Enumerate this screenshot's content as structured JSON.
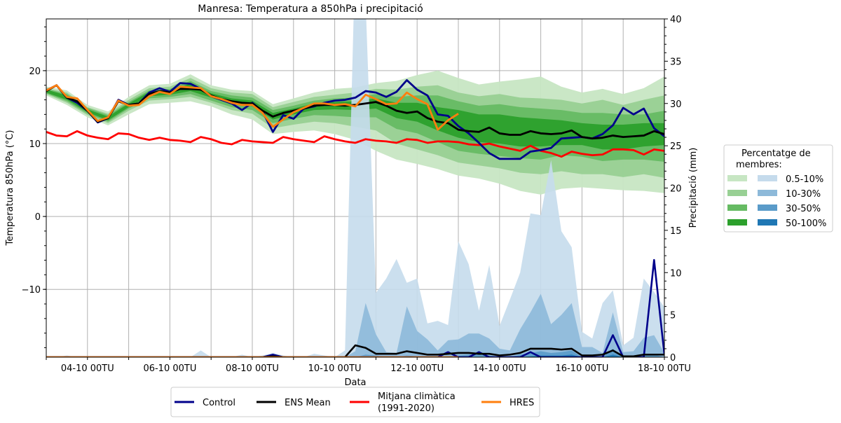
{
  "chart_data": {
    "type": "area",
    "title": "Manresa: Temperatura a 850hPa i precipitació",
    "xlabel": "Data",
    "ylabel": "Temperatura 850hPa (°C)",
    "ylabel_right": "Precipitació (mm)",
    "ylim": [
      -19.3,
      27.1
    ],
    "ylim_right": [
      0,
      40
    ],
    "xlim": [
      "03-10 00TU",
      "18-10 00TU"
    ],
    "grid": true,
    "x_ticks": [
      "04-10 00TU",
      "06-10 00TU",
      "08-10 00TU",
      "10-10 00TU",
      "12-10 00TU",
      "14-10 00TU",
      "16-10 00TU",
      "18-10 00TU"
    ],
    "y_ticks": [
      "−10",
      "0",
      "10",
      "20"
    ],
    "y_ticks_right": [
      "0",
      "5",
      "10",
      "15",
      "20",
      "25",
      "30",
      "35",
      "40"
    ],
    "x": [
      "03-10 00TU",
      "03-10 06TU",
      "03-10 12TU",
      "03-10 18TU",
      "04-10 00TU",
      "04-10 06TU",
      "04-10 12TU",
      "04-10 18TU",
      "05-10 00TU",
      "05-10 06TU",
      "05-10 12TU",
      "05-10 18TU",
      "06-10 00TU",
      "06-10 06TU",
      "06-10 12TU",
      "06-10 18TU",
      "07-10 00TU",
      "07-10 06TU",
      "07-10 12TU",
      "07-10 18TU",
      "08-10 00TU",
      "08-10 06TU",
      "08-10 12TU",
      "08-10 18TU",
      "09-10 00TU",
      "09-10 06TU",
      "09-10 12TU",
      "09-10 18TU",
      "10-10 00TU",
      "10-10 06TU",
      "10-10 12TU",
      "10-10 18TU",
      "11-10 00TU",
      "11-10 06TU",
      "11-10 12TU",
      "11-10 18TU",
      "12-10 00TU",
      "12-10 06TU",
      "12-10 12TU",
      "12-10 18TU",
      "13-10 00TU",
      "13-10 06TU",
      "13-10 12TU",
      "13-10 18TU",
      "14-10 00TU",
      "14-10 06TU",
      "14-10 12TU",
      "14-10 18TU",
      "15-10 00TU",
      "15-10 06TU",
      "15-10 12TU",
      "15-10 18TU",
      "16-10 00TU",
      "16-10 06TU",
      "16-10 12TU",
      "16-10 18TU",
      "17-10 00TU",
      "17-10 06TU",
      "17-10 12TU",
      "17-10 18TU",
      "18-10 00TU"
    ],
    "band_x": [
      "03-10 00TU",
      "03-10 12TU",
      "04-10 00TU",
      "04-10 12TU",
      "05-10 00TU",
      "05-10 12TU",
      "06-10 00TU",
      "06-10 12TU",
      "07-10 00TU",
      "07-10 12TU",
      "08-10 00TU",
      "08-10 12TU",
      "09-10 00TU",
      "09-10 12TU",
      "10-10 00TU",
      "10-10 12TU",
      "11-10 00TU",
      "11-10 12TU",
      "12-10 00TU",
      "12-10 12TU",
      "13-10 00TU",
      "13-10 12TU",
      "14-10 00TU",
      "14-10 12TU",
      "15-10 00TU",
      "15-10 12TU",
      "16-10 00TU",
      "16-10 12TU",
      "17-10 00TU",
      "17-10 12TU",
      "18-10 00TU"
    ],
    "temperature_bands": [
      {
        "label": "0.5-10%",
        "color": "#c7e6c3",
        "upper": [
          17.8,
          17.3,
          15.3,
          14.4,
          16.4,
          18.0,
          18.2,
          19.5,
          18.0,
          17.4,
          17.2,
          15.4,
          16.2,
          17.0,
          17.5,
          17.7,
          18.3,
          18.6,
          19.4,
          20.0,
          19.0,
          18.1,
          18.5,
          18.8,
          19.2,
          17.8,
          17.0,
          17.5,
          16.8,
          17.6,
          19.2
        ],
        "lower": [
          16.6,
          15.3,
          13.6,
          12.5,
          14.0,
          15.4,
          15.6,
          15.8,
          15.1,
          14.0,
          13.3,
          11.3,
          11.6,
          11.8,
          11.3,
          10.5,
          9.0,
          7.8,
          7.2,
          6.5,
          5.6,
          5.2,
          4.5,
          3.5,
          3.0,
          3.8,
          4.0,
          3.8,
          3.6,
          3.5,
          3.2
        ]
      },
      {
        "label": "10-30%",
        "color": "#98d094",
        "upper": [
          17.6,
          17.0,
          15.0,
          14.1,
          16.0,
          17.6,
          17.8,
          19.0,
          17.6,
          17.0,
          16.8,
          15.0,
          15.7,
          16.4,
          16.7,
          17.0,
          17.5,
          17.4,
          17.8,
          18.0,
          17.0,
          16.5,
          16.8,
          16.3,
          16.2,
          16.0,
          15.5,
          16.0,
          15.3,
          16.0,
          16.6
        ],
        "lower": [
          16.8,
          15.6,
          13.9,
          12.8,
          14.5,
          15.9,
          16.1,
          16.4,
          15.6,
          14.6,
          14.1,
          12.1,
          12.6,
          13.0,
          12.8,
          12.3,
          11.8,
          10.0,
          9.2,
          8.4,
          7.4,
          7.0,
          6.6,
          6.0,
          5.8,
          6.2,
          5.8,
          5.8,
          5.4,
          5.8,
          5.3
        ]
      },
      {
        "label": "30-50%",
        "color": "#66bb63",
        "upper": [
          17.5,
          16.8,
          14.9,
          13.9,
          15.7,
          17.3,
          17.5,
          18.6,
          17.2,
          16.6,
          16.3,
          14.6,
          15.2,
          15.9,
          16.2,
          16.3,
          16.8,
          16.4,
          16.6,
          16.6,
          15.8,
          15.2,
          15.4,
          15.0,
          14.8,
          14.6,
          14.2,
          14.2,
          14.0,
          14.0,
          14.5
        ],
        "lower": [
          16.9,
          15.8,
          14.1,
          13.0,
          14.8,
          16.2,
          16.4,
          16.8,
          15.9,
          15.0,
          14.6,
          12.8,
          13.4,
          13.9,
          13.8,
          13.6,
          13.6,
          12.0,
          11.4,
          10.2,
          9.0,
          8.6,
          8.3,
          8.0,
          7.8,
          8.4,
          8.2,
          7.6,
          7.8,
          7.8,
          7.5
        ]
      },
      {
        "label": "50-100%",
        "color": "#2ca02c",
        "upper": [
          17.4,
          16.6,
          14.7,
          13.7,
          15.5,
          17.1,
          17.3,
          18.2,
          16.9,
          16.2,
          15.9,
          14.2,
          14.8,
          15.5,
          15.7,
          15.8,
          16.2,
          15.6,
          15.6,
          15.0,
          14.6,
          14.0,
          14.0,
          13.6,
          13.4,
          13.2,
          12.8,
          12.6,
          12.6,
          12.8,
          12.8
        ],
        "lower": [
          17.0,
          16.0,
          14.3,
          13.2,
          15.0,
          16.5,
          16.7,
          17.2,
          16.3,
          15.4,
          15.1,
          13.3,
          14.0,
          14.6,
          14.7,
          14.6,
          14.8,
          13.5,
          13.0,
          11.8,
          10.8,
          10.2,
          10.0,
          9.6,
          9.6,
          9.8,
          9.8,
          9.2,
          9.2,
          9.6,
          9.8
        ]
      }
    ],
    "precipitation_bands": [
      {
        "label": "0.5-10%",
        "color": "#c5dbec",
        "values": [
          0,
          0,
          0.2,
          0,
          0,
          0,
          0,
          0,
          0,
          0,
          0,
          0,
          0.1,
          0,
          0,
          0.8,
          0,
          0,
          0,
          0.3,
          0,
          0.2,
          0.5,
          0.2,
          0,
          0,
          0.4,
          0.2,
          0,
          0.8,
          48,
          42,
          7.6,
          9.3,
          11.6,
          8.8,
          9.3,
          4.0,
          4.3,
          3.8,
          13.7,
          11.0,
          5.5,
          10.9,
          3.7,
          6.8,
          10.0,
          17.0,
          16.8,
          23.3,
          14.9,
          13.0,
          3.0,
          2.2,
          6.4,
          7.9,
          1.4,
          2.3,
          9.3,
          7.7,
          5.9
        ]
      },
      {
        "label": "10-30%",
        "color": "#8db9d9",
        "values": [
          0,
          0,
          0,
          0,
          0,
          0,
          0,
          0,
          0,
          0,
          0,
          0,
          0,
          0,
          0,
          0,
          0,
          0,
          0,
          0,
          0,
          0,
          0,
          0,
          0,
          0,
          0,
          0,
          0,
          0,
          0.7,
          6.4,
          2.7,
          0.6,
          0.5,
          6.0,
          3.1,
          2.1,
          0.8,
          2.0,
          2.1,
          2.8,
          2.8,
          2.2,
          1.0,
          0.8,
          3.3,
          5.3,
          7.5,
          3.9,
          5.0,
          6.4,
          1.2,
          1.2,
          0.5,
          5.3,
          0.6,
          0.7,
          2.3,
          2.6,
          0.5
        ]
      },
      {
        "label": "30-50%",
        "color": "#5a9bc9",
        "values": [
          0,
          0,
          0,
          0,
          0,
          0,
          0,
          0,
          0,
          0,
          0,
          0,
          0,
          0,
          0,
          0,
          0,
          0,
          0,
          0,
          0,
          0,
          0,
          0,
          0,
          0,
          0,
          0,
          0,
          0,
          0,
          0.3,
          0.2,
          0,
          0,
          0.2,
          0.1,
          0,
          0,
          0.1,
          0.2,
          0.3,
          0.3,
          0.2,
          0,
          0,
          0.3,
          0.5,
          0.7,
          0.5,
          0.6,
          0.8,
          0,
          0,
          0,
          1.0,
          0,
          0,
          0.2,
          0.3,
          0
        ]
      },
      {
        "label": "50-100%",
        "color": "#1f77b4",
        "values": [
          0,
          0,
          0,
          0,
          0,
          0,
          0,
          0,
          0,
          0,
          0,
          0,
          0,
          0,
          0,
          0,
          0,
          0,
          0,
          0,
          0,
          0,
          0,
          0,
          0,
          0,
          0,
          0,
          0,
          0,
          0,
          0,
          0,
          0,
          0,
          0,
          0,
          0,
          0,
          0,
          0,
          0,
          0,
          0,
          0,
          0,
          0,
          0.1,
          0.2,
          0.2,
          0.2,
          0.3,
          0,
          0,
          0,
          0.3,
          0,
          0,
          0,
          0,
          0
        ]
      }
    ],
    "series": [
      {
        "name": "Control",
        "color": "#00008b",
        "temperature": [
          17.3,
          18.0,
          16.3,
          15.6,
          14.5,
          12.9,
          13.5,
          16.0,
          15.3,
          15.5,
          17.0,
          17.6,
          17.1,
          18.3,
          18.2,
          17.5,
          16.5,
          16.0,
          15.5,
          14.6,
          15.6,
          14.4,
          11.6,
          13.9,
          13.4,
          14.8,
          15.1,
          15.6,
          15.9,
          16.0,
          16.3,
          17.2,
          17.0,
          16.4,
          17.1,
          18.7,
          17.4,
          16.6,
          14.0,
          13.8,
          12.4,
          11.4,
          10.1,
          8.7,
          7.9,
          7.9,
          7.9,
          8.9,
          9.1,
          9.4,
          10.7,
          10.8,
          10.9,
          10.7,
          11.3,
          12.5,
          14.9,
          14.0,
          14.8,
          12.1,
          11.0
        ],
        "precipitation": [
          0,
          0,
          0,
          0,
          0,
          0,
          0,
          0,
          0,
          0,
          0,
          0,
          0,
          0,
          0,
          0,
          0,
          0,
          0,
          0,
          0,
          0,
          0.3,
          0,
          0,
          0,
          0,
          0,
          0,
          0,
          0,
          0,
          0,
          0,
          0,
          0,
          0,
          0,
          0,
          0.6,
          0,
          0,
          0.6,
          0,
          0,
          0,
          0,
          0.6,
          0,
          0,
          0,
          0,
          0,
          0,
          0,
          2.6,
          0,
          0,
          0,
          11.5,
          0.3
        ]
      },
      {
        "name": "ENS Mean",
        "color": "#000000",
        "temperature": [
          17.2,
          18.0,
          16.3,
          15.8,
          14.5,
          13.0,
          13.5,
          15.8,
          15.3,
          15.5,
          16.8,
          17.2,
          17.0,
          17.5,
          17.5,
          17.4,
          16.6,
          16.1,
          15.8,
          15.6,
          15.5,
          14.5,
          13.7,
          14.2,
          14.5,
          14.8,
          15.2,
          15.3,
          15.3,
          15.2,
          15.3,
          15.5,
          15.7,
          15.2,
          14.5,
          14.2,
          14.4,
          13.5,
          13.0,
          12.8,
          11.9,
          11.7,
          11.6,
          12.2,
          11.4,
          11.2,
          11.2,
          11.7,
          11.4,
          11.3,
          11.4,
          11.8,
          10.9,
          10.7,
          10.8,
          11.1,
          10.9,
          11.0,
          11.1,
          11.7,
          11.3
        ],
        "precipitation": [
          0,
          0,
          0,
          0,
          0,
          0,
          0,
          0,
          0,
          0,
          0,
          0,
          0,
          0,
          0,
          0,
          0,
          0,
          0,
          0,
          0,
          0,
          0.1,
          0,
          0,
          0,
          0,
          0,
          0,
          0,
          1.4,
          1.1,
          0.4,
          0.4,
          0.4,
          0.7,
          0.5,
          0.3,
          0.3,
          0.4,
          0.5,
          0.5,
          0.4,
          0.4,
          0.2,
          0.3,
          0.5,
          1.0,
          1.0,
          1.0,
          0.9,
          1.0,
          0.2,
          0.2,
          0.3,
          0.8,
          0.1,
          0.1,
          0.3,
          0.3,
          0.3
        ]
      },
      {
        "name": "Mitjana climàtica\n(1991-2020)",
        "color": "#ff0000",
        "temperature": [
          11.6,
          11.1,
          11.0,
          11.7,
          11.1,
          10.8,
          10.6,
          11.4,
          11.3,
          10.8,
          10.5,
          10.8,
          10.5,
          10.4,
          10.2,
          10.9,
          10.6,
          10.1,
          9.9,
          10.5,
          10.3,
          10.2,
          10.1,
          10.9,
          10.6,
          10.4,
          10.2,
          11.0,
          10.6,
          10.3,
          10.1,
          10.6,
          10.4,
          10.3,
          10.1,
          10.6,
          10.5,
          10.1,
          10.3,
          10.3,
          10.2,
          9.9,
          9.8,
          10.0,
          9.6,
          9.3,
          9.0,
          9.7,
          9.0,
          8.7,
          8.2,
          8.9,
          8.6,
          8.4,
          8.5,
          9.2,
          9.2,
          9.1,
          8.5,
          9.2,
          9.0
        ]
      },
      {
        "name": "HRES",
        "color": "#ff7f0e",
        "temperature": [
          17.3,
          18.0,
          16.4,
          16.2,
          14.6,
          13.1,
          13.6,
          15.9,
          15.2,
          15.3,
          16.5,
          17.1,
          16.8,
          17.8,
          17.7,
          17.6,
          16.5,
          16.1,
          15.6,
          15.3,
          15.3,
          14.2,
          12.3,
          13.3,
          14.3,
          14.9,
          15.5,
          15.5,
          15.3,
          15.4,
          15.1,
          16.7,
          16.1,
          15.4,
          15.5,
          17.0,
          16.1,
          15.4,
          11.9,
          13.2,
          14.1
        ],
        "precipitation": [
          0,
          0,
          0,
          0,
          0,
          0,
          0,
          0,
          0,
          0,
          0,
          0,
          0,
          0,
          0,
          0,
          0,
          0,
          0,
          0,
          0,
          0,
          0,
          0,
          0,
          0,
          0,
          0,
          0,
          0,
          0,
          0,
          0,
          0,
          0,
          0,
          0,
          0,
          0,
          0,
          0
        ]
      }
    ],
    "band_legend": {
      "title": "Percentatge de\nmembres:",
      "labels": [
        "0.5-10%",
        "10-30%",
        "30-50%",
        "50-100%"
      ]
    },
    "series_legend_placement": "bottom-center",
    "band_legend_placement": "right"
  }
}
